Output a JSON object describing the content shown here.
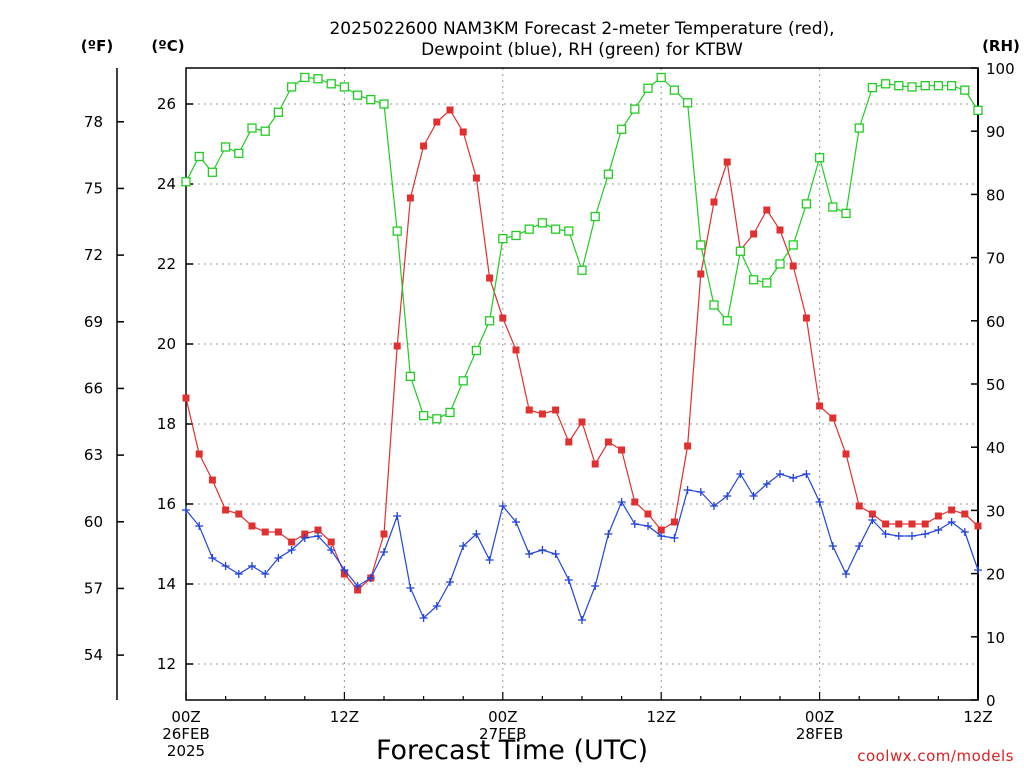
{
  "chart_data": {
    "type": "line",
    "title": "2025022600 NAM3KM Forecast 2-meter Temperature (red),",
    "subtitle": "Dewpoint (blue), RH (green) for KTBW",
    "xlabel": "Forecast Time (UTC)",
    "units": {
      "fahrenheit": "(ºF)",
      "celsius": "(ºC)",
      "rh": "(RH)"
    },
    "credit": "coolwx.com/models",
    "x_tick_labels": [
      {
        "hour": 0,
        "lines": [
          "00Z",
          "26FEB",
          "2025"
        ]
      },
      {
        "hour": 12,
        "lines": [
          "12Z"
        ]
      },
      {
        "hour": 24,
        "lines": [
          "00Z",
          "27FEB"
        ]
      },
      {
        "hour": 36,
        "lines": [
          "12Z"
        ]
      },
      {
        "hour": 48,
        "lines": [
          "00Z",
          "28FEB"
        ]
      },
      {
        "hour": 60,
        "lines": [
          "12Z"
        ]
      }
    ],
    "x_range_hours": [
      0,
      60
    ],
    "celsius_axis": {
      "range": [
        11.1,
        26.9
      ],
      "ticks": [
        "12",
        "14",
        "16",
        "18",
        "20",
        "22",
        "24",
        "26"
      ]
    },
    "fahrenheit_axis": {
      "ticks": [
        "54",
        "57",
        "60",
        "63",
        "66",
        "69",
        "72",
        "75",
        "78"
      ]
    },
    "rh_axis": {
      "range": [
        0,
        100
      ],
      "ticks": [
        "0",
        "10",
        "20",
        "30",
        "40",
        "50",
        "60",
        "70",
        "80",
        "90",
        "100"
      ]
    },
    "grid": true,
    "series": [
      {
        "key": "temperature",
        "unit": "C",
        "color": "#e03030",
        "marker": "filled-square",
        "values": [
          18.65,
          17.25,
          16.6,
          15.85,
          15.75,
          15.45,
          15.3,
          15.3,
          15.05,
          15.25,
          15.35,
          15.05,
          14.25,
          13.85,
          14.15,
          15.25,
          19.95,
          23.65,
          24.95,
          25.55,
          25.85,
          25.3,
          24.15,
          21.65,
          20.65,
          19.85,
          18.35,
          18.25,
          18.35,
          17.55,
          18.05,
          17.0,
          17.55,
          17.35,
          16.05,
          15.75,
          15.35,
          15.55,
          17.45,
          21.75,
          23.55,
          24.55,
          22.35,
          22.75,
          23.35,
          22.85,
          21.95,
          20.65,
          18.45,
          18.15,
          17.25,
          15.95,
          15.75,
          15.5,
          15.5,
          15.5,
          15.5,
          15.7,
          15.85,
          15.75,
          15.45
        ]
      },
      {
        "key": "dewpoint",
        "unit": "C",
        "color": "#2244dd",
        "marker": "plus",
        "values": [
          15.85,
          15.45,
          14.65,
          14.45,
          14.25,
          14.45,
          14.25,
          14.65,
          14.85,
          15.15,
          15.2,
          14.85,
          14.35,
          13.95,
          14.15,
          14.8,
          15.7,
          13.9,
          13.15,
          13.45,
          14.05,
          14.95,
          15.25,
          14.6,
          15.95,
          15.55,
          14.75,
          14.85,
          14.75,
          14.1,
          13.1,
          13.95,
          15.25,
          16.05,
          15.5,
          15.45,
          15.2,
          15.15,
          16.35,
          16.3,
          15.95,
          16.2,
          16.75,
          16.2,
          16.5,
          16.75,
          16.65,
          16.75,
          16.05,
          14.95,
          14.25,
          14.95,
          15.6,
          15.25,
          15.2,
          15.2,
          15.25,
          15.35,
          15.55,
          15.3,
          14.35
        ]
      },
      {
        "key": "rh",
        "unit": "%",
        "color": "#22cc22",
        "marker": "hollow-square",
        "values": [
          82,
          86,
          83.5,
          87.5,
          86.5,
          90.5,
          90,
          93,
          97,
          98.5,
          98.3,
          97.5,
          97,
          95.7,
          95,
          94.3,
          74.2,
          51.2,
          45,
          44.5,
          45.5,
          50.5,
          55.3,
          60,
          73,
          73.5,
          74.5,
          75.5,
          74.5,
          74.2,
          68,
          76.5,
          83.2,
          90.3,
          93.5,
          96.8,
          98.5,
          96.5,
          94.5,
          72,
          62.5,
          60,
          71,
          66.5,
          66,
          69,
          72,
          78.5,
          85.8,
          78,
          77,
          90.5,
          96.9,
          97.5,
          97.2,
          97,
          97.2,
          97.2,
          97.2,
          96.5,
          93.3
        ]
      }
    ]
  }
}
